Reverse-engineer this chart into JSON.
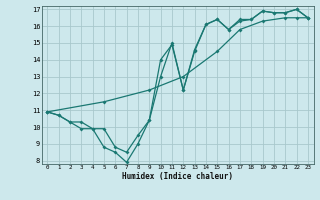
{
  "xlabel": "Humidex (Indice chaleur)",
  "xlim": [
    -0.5,
    23.5
  ],
  "ylim": [
    7.8,
    17.2
  ],
  "yticks": [
    8,
    9,
    10,
    11,
    12,
    13,
    14,
    15,
    16,
    17
  ],
  "xticks": [
    0,
    1,
    2,
    3,
    4,
    5,
    6,
    7,
    8,
    9,
    10,
    11,
    12,
    13,
    14,
    15,
    16,
    17,
    18,
    19,
    20,
    21,
    22,
    23
  ],
  "bg_color": "#cde8ec",
  "line_color": "#1a7872",
  "grid_color": "#a8c8cc",
  "line1_x": [
    0,
    1,
    2,
    3,
    4,
    5,
    6,
    7,
    8,
    9,
    10,
    11,
    12,
    13,
    14,
    15,
    16,
    17,
    18,
    19,
    20,
    21,
    22,
    23
  ],
  "line1_y": [
    10.9,
    10.7,
    10.3,
    9.9,
    9.9,
    8.8,
    8.5,
    7.9,
    9.0,
    10.4,
    14.0,
    14.9,
    12.2,
    14.6,
    16.1,
    16.4,
    15.8,
    16.4,
    16.4,
    16.9,
    16.8,
    16.8,
    17.0,
    16.5
  ],
  "line2_x": [
    0,
    1,
    2,
    3,
    4,
    5,
    6,
    7,
    8,
    9,
    10,
    11,
    12,
    13,
    14,
    15,
    16,
    17,
    18,
    19,
    20,
    21,
    22,
    23
  ],
  "line2_y": [
    10.9,
    10.7,
    10.3,
    10.3,
    9.9,
    9.9,
    8.8,
    8.5,
    9.5,
    10.4,
    13.0,
    15.0,
    12.2,
    14.5,
    16.1,
    16.4,
    15.8,
    16.3,
    16.4,
    16.9,
    16.8,
    16.8,
    17.0,
    16.5
  ],
  "line3_x": [
    0,
    5,
    9,
    12,
    15,
    17,
    19,
    21,
    22,
    23
  ],
  "line3_y": [
    10.9,
    11.5,
    12.2,
    13.0,
    14.5,
    15.8,
    16.3,
    16.5,
    16.5,
    16.5
  ]
}
